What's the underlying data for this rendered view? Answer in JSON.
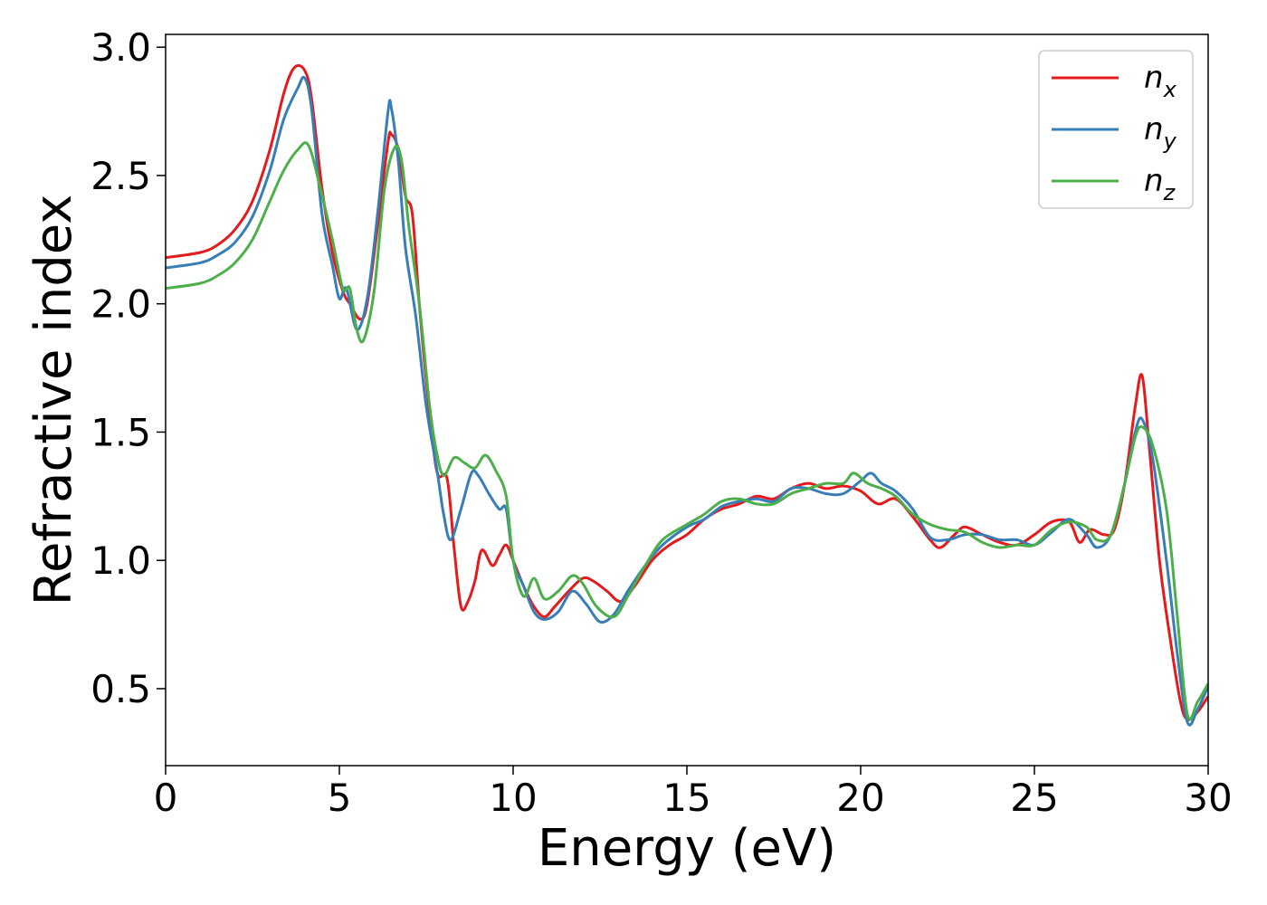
{
  "chart_data": {
    "type": "line",
    "xlabel": "Energy (eV)",
    "ylabel": "Refractive index",
    "xlim": [
      0,
      30
    ],
    "ylim": [
      0.2,
      3.05
    ],
    "x_ticks": [
      0,
      5,
      10,
      15,
      20,
      25,
      30
    ],
    "x_tick_labels": [
      "0",
      "5",
      "10",
      "15",
      "20",
      "25",
      "30"
    ],
    "y_ticks": [
      0.5,
      1.0,
      1.5,
      2.0,
      2.5,
      3.0
    ],
    "y_tick_labels": [
      "0.5",
      "1.0",
      "1.5",
      "2.0",
      "2.5",
      "3.0"
    ],
    "grid": false,
    "legend_position": "top-right",
    "series": [
      {
        "name": "n",
        "subscript": "x",
        "color": "#e41a1c",
        "points": [
          [
            0,
            2.18
          ],
          [
            1,
            2.2
          ],
          [
            1.5,
            2.23
          ],
          [
            2,
            2.29
          ],
          [
            2.5,
            2.4
          ],
          [
            3,
            2.6
          ],
          [
            3.4,
            2.82
          ],
          [
            3.7,
            2.92
          ],
          [
            4,
            2.91
          ],
          [
            4.2,
            2.8
          ],
          [
            4.5,
            2.45
          ],
          [
            4.8,
            2.2
          ],
          [
            5.1,
            2.05
          ],
          [
            5.3,
            2.0
          ],
          [
            5.6,
            1.94
          ],
          [
            5.8,
            2.0
          ],
          [
            6.1,
            2.3
          ],
          [
            6.4,
            2.63
          ],
          [
            6.5,
            2.66
          ],
          [
            6.7,
            2.6
          ],
          [
            6.9,
            2.42
          ],
          [
            7.1,
            2.35
          ],
          [
            7.3,
            2.0
          ],
          [
            7.5,
            1.7
          ],
          [
            7.8,
            1.35
          ],
          [
            8.1,
            1.32
          ],
          [
            8.3,
            1.05
          ],
          [
            8.5,
            0.82
          ],
          [
            8.7,
            0.84
          ],
          [
            8.9,
            0.92
          ],
          [
            9.1,
            1.04
          ],
          [
            9.4,
            0.98
          ],
          [
            9.6,
            1.02
          ],
          [
            9.8,
            1.06
          ],
          [
            10,
            1.0
          ],
          [
            10.3,
            0.9
          ],
          [
            10.6,
            0.82
          ],
          [
            10.9,
            0.78
          ],
          [
            11.2,
            0.82
          ],
          [
            11.6,
            0.88
          ],
          [
            12,
            0.93
          ],
          [
            12.3,
            0.92
          ],
          [
            12.7,
            0.88
          ],
          [
            13.1,
            0.84
          ],
          [
            13.5,
            0.9
          ],
          [
            14,
            1.0
          ],
          [
            14.5,
            1.06
          ],
          [
            15,
            1.1
          ],
          [
            15.5,
            1.16
          ],
          [
            16,
            1.2
          ],
          [
            16.5,
            1.22
          ],
          [
            17,
            1.25
          ],
          [
            17.5,
            1.24
          ],
          [
            18,
            1.28
          ],
          [
            18.5,
            1.3
          ],
          [
            19,
            1.28
          ],
          [
            19.5,
            1.29
          ],
          [
            20,
            1.27
          ],
          [
            20.5,
            1.22
          ],
          [
            21,
            1.24
          ],
          [
            21.5,
            1.17
          ],
          [
            22,
            1.08
          ],
          [
            22.3,
            1.05
          ],
          [
            22.7,
            1.1
          ],
          [
            23,
            1.13
          ],
          [
            23.5,
            1.1
          ],
          [
            24,
            1.07
          ],
          [
            24.5,
            1.06
          ],
          [
            25,
            1.1
          ],
          [
            25.5,
            1.15
          ],
          [
            26,
            1.15
          ],
          [
            26.3,
            1.07
          ],
          [
            26.6,
            1.12
          ],
          [
            27,
            1.1
          ],
          [
            27.3,
            1.12
          ],
          [
            27.6,
            1.3
          ],
          [
            27.9,
            1.6
          ],
          [
            28.1,
            1.72
          ],
          [
            28.3,
            1.45
          ],
          [
            28.6,
            1.0
          ],
          [
            28.9,
            0.7
          ],
          [
            29.2,
            0.45
          ],
          [
            29.4,
            0.38
          ],
          [
            29.7,
            0.41
          ],
          [
            30,
            0.47
          ]
        ]
      },
      {
        "name": "n",
        "subscript": "y",
        "color": "#377eb8",
        "points": [
          [
            0,
            2.14
          ],
          [
            1,
            2.16
          ],
          [
            1.5,
            2.19
          ],
          [
            2,
            2.24
          ],
          [
            2.5,
            2.34
          ],
          [
            3,
            2.52
          ],
          [
            3.4,
            2.72
          ],
          [
            3.8,
            2.84
          ],
          [
            4,
            2.88
          ],
          [
            4.2,
            2.76
          ],
          [
            4.5,
            2.35
          ],
          [
            4.8,
            2.15
          ],
          [
            5.0,
            2.02
          ],
          [
            5.2,
            2.06
          ],
          [
            5.5,
            1.9
          ],
          [
            5.8,
            2.02
          ],
          [
            6.1,
            2.35
          ],
          [
            6.4,
            2.75
          ],
          [
            6.5,
            2.76
          ],
          [
            6.7,
            2.55
          ],
          [
            6.9,
            2.22
          ],
          [
            7.2,
            1.95
          ],
          [
            7.5,
            1.6
          ],
          [
            7.8,
            1.36
          ],
          [
            8.0,
            1.18
          ],
          [
            8.2,
            1.08
          ],
          [
            8.5,
            1.2
          ],
          [
            8.8,
            1.34
          ],
          [
            9.0,
            1.33
          ],
          [
            9.3,
            1.26
          ],
          [
            9.6,
            1.2
          ],
          [
            9.8,
            1.2
          ],
          [
            10,
            1.0
          ],
          [
            10.3,
            0.9
          ],
          [
            10.6,
            0.8
          ],
          [
            10.9,
            0.77
          ],
          [
            11.3,
            0.8
          ],
          [
            11.7,
            0.88
          ],
          [
            12.1,
            0.83
          ],
          [
            12.5,
            0.76
          ],
          [
            12.9,
            0.79
          ],
          [
            13.3,
            0.88
          ],
          [
            13.8,
            0.98
          ],
          [
            14.3,
            1.06
          ],
          [
            15,
            1.13
          ],
          [
            15.5,
            1.16
          ],
          [
            16,
            1.21
          ],
          [
            16.5,
            1.23
          ],
          [
            17,
            1.24
          ],
          [
            17.5,
            1.23
          ],
          [
            18,
            1.28
          ],
          [
            18.5,
            1.28
          ],
          [
            19,
            1.26
          ],
          [
            19.5,
            1.26
          ],
          [
            20,
            1.31
          ],
          [
            20.3,
            1.34
          ],
          [
            20.6,
            1.3
          ],
          [
            21,
            1.27
          ],
          [
            21.5,
            1.2
          ],
          [
            22,
            1.09
          ],
          [
            22.5,
            1.08
          ],
          [
            23,
            1.1
          ],
          [
            23.5,
            1.1
          ],
          [
            24,
            1.08
          ],
          [
            24.5,
            1.08
          ],
          [
            25,
            1.06
          ],
          [
            25.5,
            1.11
          ],
          [
            26,
            1.16
          ],
          [
            26.5,
            1.1
          ],
          [
            26.8,
            1.05
          ],
          [
            27.2,
            1.1
          ],
          [
            27.6,
            1.3
          ],
          [
            27.9,
            1.5
          ],
          [
            28.1,
            1.55
          ],
          [
            28.4,
            1.4
          ],
          [
            28.8,
            1.0
          ],
          [
            29.1,
            0.65
          ],
          [
            29.4,
            0.37
          ],
          [
            29.7,
            0.42
          ],
          [
            30,
            0.51
          ]
        ]
      },
      {
        "name": "n",
        "subscript": "z",
        "color": "#4daf4a",
        "points": [
          [
            0,
            2.06
          ],
          [
            1,
            2.08
          ],
          [
            1.5,
            2.11
          ],
          [
            2,
            2.16
          ],
          [
            2.5,
            2.25
          ],
          [
            3,
            2.4
          ],
          [
            3.4,
            2.52
          ],
          [
            3.8,
            2.6
          ],
          [
            4.1,
            2.62
          ],
          [
            4.4,
            2.48
          ],
          [
            4.8,
            2.25
          ],
          [
            5.1,
            2.06
          ],
          [
            5.3,
            2.06
          ],
          [
            5.5,
            1.9
          ],
          [
            5.7,
            1.86
          ],
          [
            6.0,
            2.05
          ],
          [
            6.3,
            2.45
          ],
          [
            6.6,
            2.61
          ],
          [
            6.8,
            2.55
          ],
          [
            7.0,
            2.3
          ],
          [
            7.3,
            2.0
          ],
          [
            7.6,
            1.6
          ],
          [
            7.8,
            1.42
          ],
          [
            8.0,
            1.33
          ],
          [
            8.3,
            1.4
          ],
          [
            8.6,
            1.38
          ],
          [
            8.9,
            1.36
          ],
          [
            9.2,
            1.41
          ],
          [
            9.5,
            1.35
          ],
          [
            9.8,
            1.25
          ],
          [
            10,
            1.0
          ],
          [
            10.3,
            0.86
          ],
          [
            10.6,
            0.93
          ],
          [
            10.9,
            0.85
          ],
          [
            11.3,
            0.88
          ],
          [
            11.7,
            0.94
          ],
          [
            12.0,
            0.91
          ],
          [
            12.4,
            0.82
          ],
          [
            12.9,
            0.78
          ],
          [
            13.3,
            0.86
          ],
          [
            13.8,
            0.98
          ],
          [
            14.3,
            1.08
          ],
          [
            15,
            1.14
          ],
          [
            15.5,
            1.18
          ],
          [
            16,
            1.23
          ],
          [
            16.5,
            1.24
          ],
          [
            17,
            1.22
          ],
          [
            17.5,
            1.22
          ],
          [
            18,
            1.26
          ],
          [
            18.5,
            1.28
          ],
          [
            19,
            1.3
          ],
          [
            19.5,
            1.3
          ],
          [
            19.8,
            1.34
          ],
          [
            20.2,
            1.3
          ],
          [
            20.6,
            1.28
          ],
          [
            21,
            1.25
          ],
          [
            21.5,
            1.18
          ],
          [
            22,
            1.14
          ],
          [
            22.5,
            1.12
          ],
          [
            23,
            1.11
          ],
          [
            23.5,
            1.07
          ],
          [
            24,
            1.05
          ],
          [
            24.5,
            1.06
          ],
          [
            25,
            1.06
          ],
          [
            25.5,
            1.12
          ],
          [
            26,
            1.15
          ],
          [
            26.5,
            1.13
          ],
          [
            26.8,
            1.08
          ],
          [
            27.2,
            1.1
          ],
          [
            27.6,
            1.3
          ],
          [
            27.9,
            1.48
          ],
          [
            28.1,
            1.52
          ],
          [
            28.4,
            1.45
          ],
          [
            28.8,
            1.2
          ],
          [
            29.1,
            0.8
          ],
          [
            29.4,
            0.4
          ],
          [
            29.7,
            0.45
          ],
          [
            30,
            0.52
          ]
        ]
      }
    ]
  }
}
